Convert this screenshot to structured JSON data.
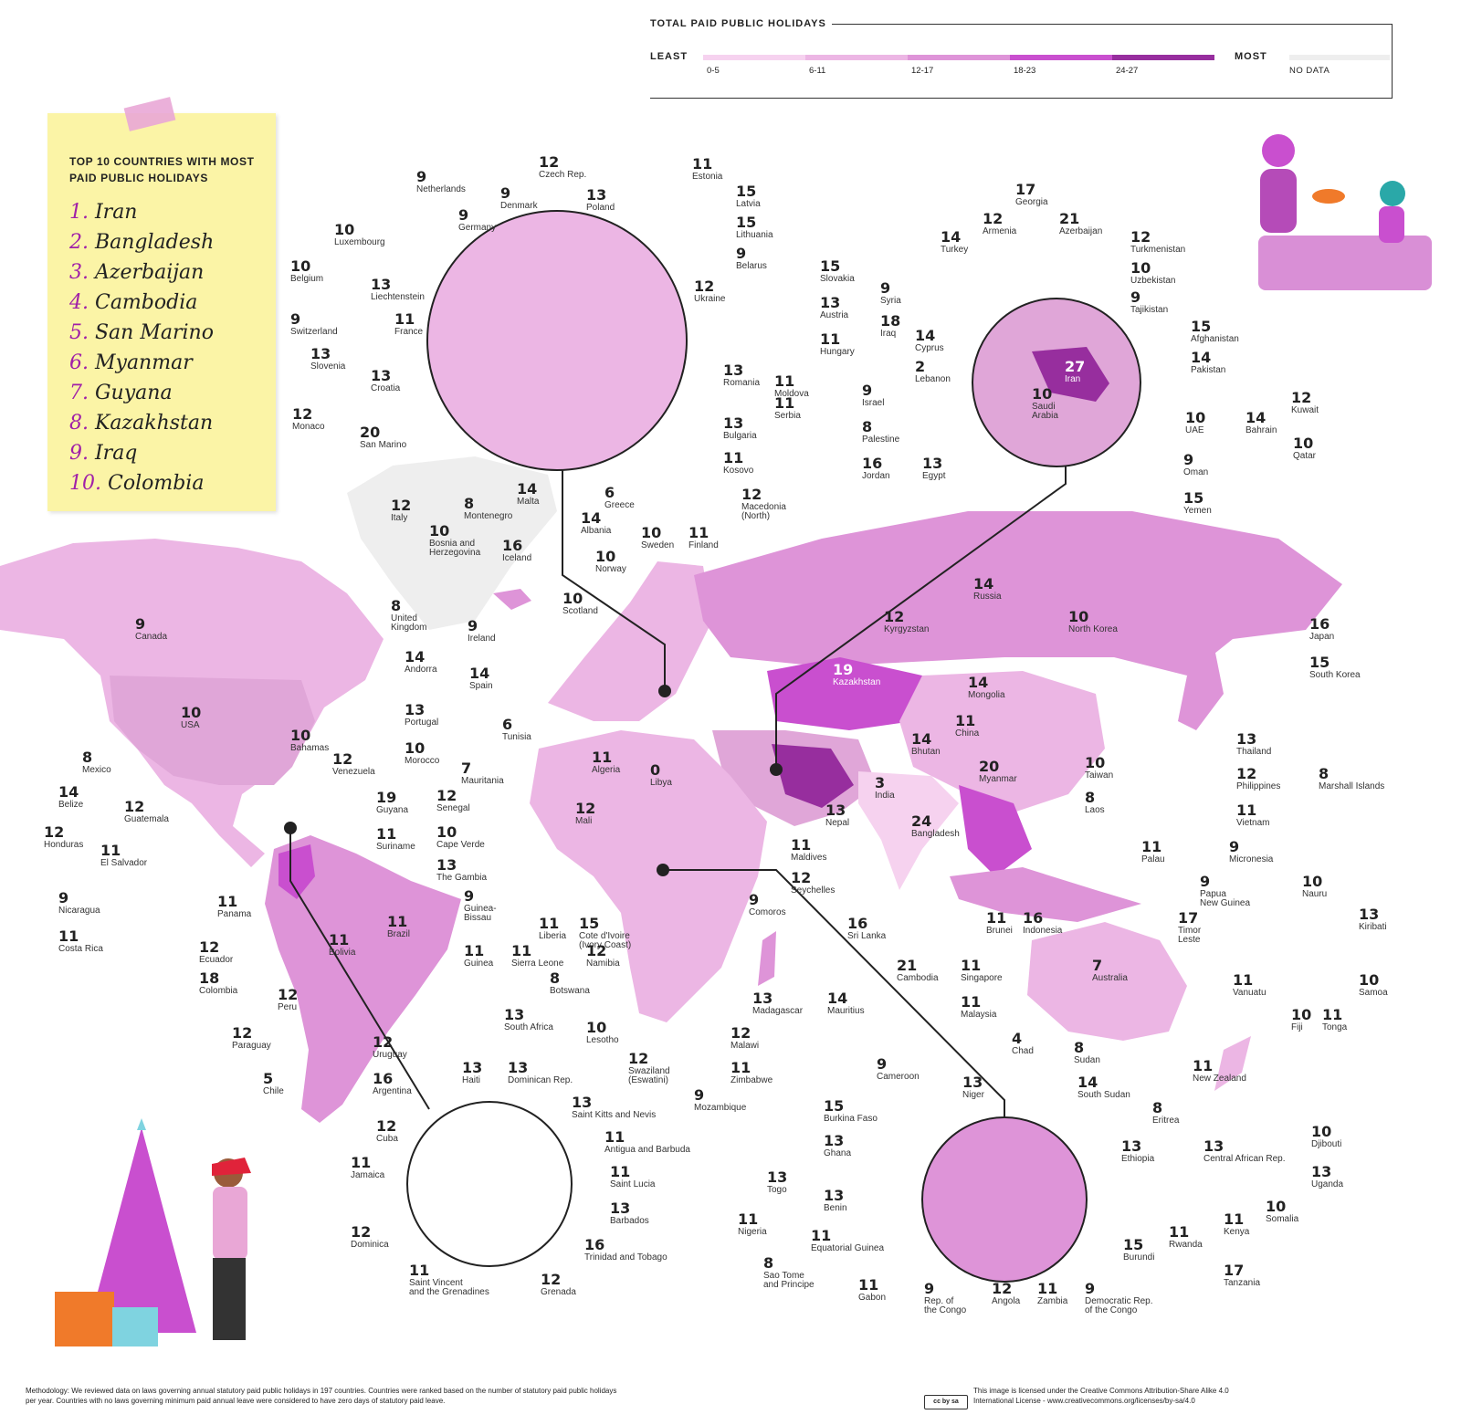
{
  "legend": {
    "title": "TOTAL PAID PUBLIC HOLIDAYS",
    "least": "LEAST",
    "most": "MOST",
    "bins": [
      {
        "label": "0-5",
        "color": "#f6d2ef"
      },
      {
        "label": "6-11",
        "color": "#ecb6e4"
      },
      {
        "label": "12-17",
        "color": "#de94d8"
      },
      {
        "label": "18-23",
        "color": "#c94fcf"
      },
      {
        "label": "24-27",
        "color": "#972e9e"
      }
    ],
    "no_data": {
      "label": "NO DATA",
      "color": "#eeeeee"
    }
  },
  "top10": {
    "title": "TOP 10 COUNTRIES WITH MOST PAID PUBLIC HOLIDAYS",
    "items": [
      "Iran",
      "Bangladesh",
      "Azerbaijan",
      "Cambodia",
      "San Marino",
      "Myanmar",
      "Guyana",
      "Kazakhstan",
      "Iraq",
      "Colombia"
    ]
  },
  "map_data": {
    "type": "choropleth world map",
    "values": [
      {
        "name": "Canada",
        "value": "9"
      },
      {
        "name": "USA",
        "value": "10"
      },
      {
        "name": "Mexico",
        "value": "8"
      },
      {
        "name": "Bahamas",
        "value": "10"
      },
      {
        "name": "Belize",
        "value": "14"
      },
      {
        "name": "Guatemala",
        "value": "12"
      },
      {
        "name": "Honduras",
        "value": "12"
      },
      {
        "name": "El Salvador",
        "value": "11"
      },
      {
        "name": "Nicaragua",
        "value": "9"
      },
      {
        "name": "Costa Rica",
        "value": "11"
      },
      {
        "name": "Panama",
        "value": "11"
      },
      {
        "name": "Ecuador",
        "value": "12"
      },
      {
        "name": "Colombia",
        "value": "18"
      },
      {
        "name": "Peru",
        "value": "12"
      },
      {
        "name": "Venezuela",
        "value": "12"
      },
      {
        "name": "Guyana",
        "value": "19"
      },
      {
        "name": "Suriname",
        "value": "11"
      },
      {
        "name": "Brazil",
        "value": "11"
      },
      {
        "name": "Bolivia",
        "value": "11"
      },
      {
        "name": "Paraguay",
        "value": "12"
      },
      {
        "name": "Uruguay",
        "value": "12"
      },
      {
        "name": "Argentina",
        "value": "16"
      },
      {
        "name": "Chile",
        "value": "5"
      },
      {
        "name": "Iceland",
        "value": "16"
      },
      {
        "name": "Norway",
        "value": "10"
      },
      {
        "name": "Sweden",
        "value": "10"
      },
      {
        "name": "Finland",
        "value": "11"
      },
      {
        "name": "Scotland",
        "value": "10"
      },
      {
        "name": "United\nKingdom",
        "value": "8"
      },
      {
        "name": "Ireland",
        "value": "9"
      },
      {
        "name": "Andorra",
        "value": "14"
      },
      {
        "name": "Spain",
        "value": "14"
      },
      {
        "name": "Portugal",
        "value": "13"
      },
      {
        "name": "Tunisia",
        "value": "6"
      },
      {
        "name": "Morocco",
        "value": "10"
      },
      {
        "name": "Algeria",
        "value": "11"
      },
      {
        "name": "Libya",
        "value": "0"
      },
      {
        "name": "Mauritania",
        "value": "7"
      },
      {
        "name": "Mali",
        "value": "12"
      },
      {
        "name": "Senegal",
        "value": "12"
      },
      {
        "name": "Cape Verde",
        "value": "10"
      },
      {
        "name": "The Gambia",
        "value": "13"
      },
      {
        "name": "Guinea-\nBissau",
        "value": "9"
      },
      {
        "name": "Guinea",
        "value": "11"
      },
      {
        "name": "Liberia",
        "value": "11"
      },
      {
        "name": "Sierra Leone",
        "value": "11"
      },
      {
        "name": "Cote d'Ivoire\n(Ivory Coast)",
        "value": "15"
      },
      {
        "name": "Namibia",
        "value": "12"
      },
      {
        "name": "Botswana",
        "value": "8"
      },
      {
        "name": "South Africa",
        "value": "13"
      },
      {
        "name": "Lesotho",
        "value": "10"
      },
      {
        "name": "Swaziland\n(Eswatini)",
        "value": "12"
      },
      {
        "name": "Zimbabwe",
        "value": "11"
      },
      {
        "name": "Malawi",
        "value": "12"
      },
      {
        "name": "Mozambique",
        "value": "9"
      },
      {
        "name": "Madagascar",
        "value": "13"
      },
      {
        "name": "Comoros",
        "value": "9"
      },
      {
        "name": "Mauritius",
        "value": "14"
      },
      {
        "name": "Seychelles",
        "value": "12"
      },
      {
        "name": "Maldives",
        "value": "11"
      },
      {
        "name": "Sri Lanka",
        "value": "16"
      },
      {
        "name": "India",
        "value": "3"
      },
      {
        "name": "Nepal",
        "value": "13"
      },
      {
        "name": "Bhutan",
        "value": "14"
      },
      {
        "name": "Bangladesh",
        "value": "24"
      },
      {
        "name": "Myanmar",
        "value": "20"
      },
      {
        "name": "China",
        "value": "11"
      },
      {
        "name": "Mongolia",
        "value": "14"
      },
      {
        "name": "Kazakhstan",
        "value": "19"
      },
      {
        "name": "Kyrgyzstan",
        "value": "12"
      },
      {
        "name": "Russia",
        "value": "14"
      },
      {
        "name": "North Korea",
        "value": "10"
      },
      {
        "name": "Japan",
        "value": "16"
      },
      {
        "name": "South Korea",
        "value": "15"
      },
      {
        "name": "Taiwan",
        "value": "10"
      },
      {
        "name": "Thailand",
        "value": "13"
      },
      {
        "name": "Laos",
        "value": "8"
      },
      {
        "name": "Philippines",
        "value": "12"
      },
      {
        "name": "Vietnam",
        "value": "11"
      },
      {
        "name": "Cambodia",
        "value": "21"
      },
      {
        "name": "Singapore",
        "value": "11"
      },
      {
        "name": "Malaysia",
        "value": "11"
      },
      {
        "name": "Brunei",
        "value": "11"
      },
      {
        "name": "Indonesia",
        "value": "16"
      },
      {
        "name": "Timor\nLeste",
        "value": "17"
      },
      {
        "name": "Papua\nNew Guinea",
        "value": "9"
      },
      {
        "name": "Palau",
        "value": "11"
      },
      {
        "name": "Micronesia",
        "value": "9"
      },
      {
        "name": "Marshall Islands",
        "value": "8"
      },
      {
        "name": "Nauru",
        "value": "10"
      },
      {
        "name": "Kiribati",
        "value": "13"
      },
      {
        "name": "Samoa",
        "value": "10"
      },
      {
        "name": "Tonga",
        "value": "11"
      },
      {
        "name": "Fiji",
        "value": "10"
      },
      {
        "name": "Vanuatu",
        "value": "11"
      },
      {
        "name": "Australia",
        "value": "7"
      },
      {
        "name": "New Zealand",
        "value": "11"
      },
      {
        "name": "Netherlands",
        "value": "9"
      },
      {
        "name": "Denmark",
        "value": "9"
      },
      {
        "name": "Czech Rep.",
        "value": "12"
      },
      {
        "name": "Estonia",
        "value": "11"
      },
      {
        "name": "Latvia",
        "value": "15"
      },
      {
        "name": "Lithuania",
        "value": "15"
      },
      {
        "name": "Germany",
        "value": "9"
      },
      {
        "name": "Poland",
        "value": "13"
      },
      {
        "name": "Luxembourg",
        "value": "10"
      },
      {
        "name": "Belarus",
        "value": "9"
      },
      {
        "name": "Belgium",
        "value": "10"
      },
      {
        "name": "Ukraine",
        "value": "12"
      },
      {
        "name": "Liechtenstein",
        "value": "13"
      },
      {
        "name": "Slovakia",
        "value": "15"
      },
      {
        "name": "Switzerland",
        "value": "9"
      },
      {
        "name": "France",
        "value": "11"
      },
      {
        "name": "Austria",
        "value": "13"
      },
      {
        "name": "Slovenia",
        "value": "13"
      },
      {
        "name": "Hungary",
        "value": "11"
      },
      {
        "name": "Croatia",
        "value": "13"
      },
      {
        "name": "Romania",
        "value": "13"
      },
      {
        "name": "Moldova",
        "value": "11"
      },
      {
        "name": "Monaco",
        "value": "12"
      },
      {
        "name": "Serbia",
        "value": "11"
      },
      {
        "name": "San Marino",
        "value": "20"
      },
      {
        "name": "Bulgaria",
        "value": "13"
      },
      {
        "name": "Kosovo",
        "value": "11"
      },
      {
        "name": "Italy",
        "value": "12"
      },
      {
        "name": "Montenegro",
        "value": "8"
      },
      {
        "name": "Malta",
        "value": "14"
      },
      {
        "name": "Greece",
        "value": "6"
      },
      {
        "name": "Macedonia\n(North)",
        "value": "12"
      },
      {
        "name": "Albania",
        "value": "14"
      },
      {
        "name": "Bosnia and\nHerzegovina",
        "value": "10"
      },
      {
        "name": "Georgia",
        "value": "17"
      },
      {
        "name": "Armenia",
        "value": "12"
      },
      {
        "name": "Azerbaijan",
        "value": "21"
      },
      {
        "name": "Turkey",
        "value": "14"
      },
      {
        "name": "Turkmenistan",
        "value": "12"
      },
      {
        "name": "Uzbekistan",
        "value": "10"
      },
      {
        "name": "Syria",
        "value": "9"
      },
      {
        "name": "Tajikistan",
        "value": "9"
      },
      {
        "name": "Iraq",
        "value": "18"
      },
      {
        "name": "Afghanistan",
        "value": "15"
      },
      {
        "name": "Cyprus",
        "value": "14"
      },
      {
        "name": "Pakistan",
        "value": "14"
      },
      {
        "name": "Lebanon",
        "value": "2"
      },
      {
        "name": "Iran",
        "value": "27"
      },
      {
        "name": "Kuwait",
        "value": "12"
      },
      {
        "name": "Israel",
        "value": "9"
      },
      {
        "name": "Saudi\nArabia",
        "value": "10"
      },
      {
        "name": "Bahrain",
        "value": "14"
      },
      {
        "name": "UAE",
        "value": "10"
      },
      {
        "name": "Palestine",
        "value": "8"
      },
      {
        "name": "Qatar",
        "value": "10"
      },
      {
        "name": "Jordan",
        "value": "16"
      },
      {
        "name": "Egypt",
        "value": "13"
      },
      {
        "name": "Oman",
        "value": "9"
      },
      {
        "name": "Yemen",
        "value": "15"
      },
      {
        "name": "Haiti",
        "value": "13"
      },
      {
        "name": "Dominican Rep.",
        "value": "13"
      },
      {
        "name": "Saint Kitts and Nevis",
        "value": "13"
      },
      {
        "name": "Antigua and Barbuda",
        "value": "11"
      },
      {
        "name": "Cuba",
        "value": "12"
      },
      {
        "name": "Saint Lucia",
        "value": "11"
      },
      {
        "name": "Jamaica",
        "value": "11"
      },
      {
        "name": "Barbados",
        "value": "13"
      },
      {
        "name": "Dominica",
        "value": "12"
      },
      {
        "name": "Trinidad and Tobago",
        "value": "16"
      },
      {
        "name": "Saint Vincent\nand the Grenadines",
        "value": "11"
      },
      {
        "name": "Grenada",
        "value": "12"
      },
      {
        "name": "Chad",
        "value": "4"
      },
      {
        "name": "Sudan",
        "value": "8"
      },
      {
        "name": "Cameroon",
        "value": "9"
      },
      {
        "name": "Niger",
        "value": "13"
      },
      {
        "name": "South Sudan",
        "value": "14"
      },
      {
        "name": "Burkina Faso",
        "value": "15"
      },
      {
        "name": "Eritrea",
        "value": "8"
      },
      {
        "name": "Djibouti",
        "value": "10"
      },
      {
        "name": "Ghana",
        "value": "13"
      },
      {
        "name": "Ethiopia",
        "value": "13"
      },
      {
        "name": "Central African Rep.",
        "value": "13"
      },
      {
        "name": "Togo",
        "value": "13"
      },
      {
        "name": "Uganda",
        "value": "13"
      },
      {
        "name": "Benin",
        "value": "13"
      },
      {
        "name": "Somalia",
        "value": "10"
      },
      {
        "name": "Nigeria",
        "value": "11"
      },
      {
        "name": "Kenya",
        "value": "11"
      },
      {
        "name": "Equatorial Guinea",
        "value": "11"
      },
      {
        "name": "Rwanda",
        "value": "11"
      },
      {
        "name": "Burundi",
        "value": "15"
      },
      {
        "name": "Sao Tome\nand Principe",
        "value": "8"
      },
      {
        "name": "Tanzania",
        "value": "17"
      },
      {
        "name": "Gabon",
        "value": "11"
      },
      {
        "name": "Rep. of\nthe Congo",
        "value": "9"
      },
      {
        "name": "Angola",
        "value": "12"
      },
      {
        "name": "Zambia",
        "value": "11"
      },
      {
        "name": "Democratic Rep.\nof the Congo",
        "value": "9"
      }
    ]
  },
  "footer": {
    "methodology": "Methodology: We reviewed data on laws governing annual statutory paid public holidays in 197 countries. Countries were ranked based on the number of statutory paid public holidays per year. Countries with no laws governing minimum paid annual leave were considered to have zero days of statutory paid leave.",
    "license": "This image is licensed under the Creative Commons Attribution-Share Alike 4.0 International License - www.creativecommons.org/licenses/by-sa/4.0",
    "badge": "cc by sa"
  }
}
